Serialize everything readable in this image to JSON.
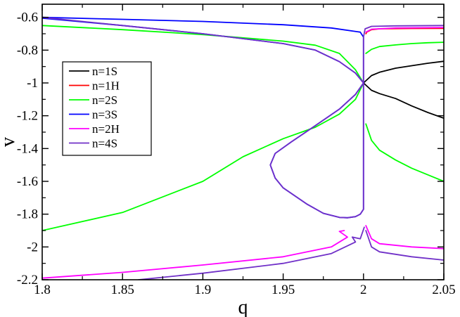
{
  "chart_data": {
    "type": "line",
    "title": "",
    "xlabel": "q",
    "ylabel": "v",
    "xlim": [
      1.8,
      2.05
    ],
    "ylim": [
      -2.2,
      -0.52
    ],
    "xticks": [
      1.8,
      1.85,
      1.9,
      1.95,
      2.0,
      2.05
    ],
    "xtick_labels": [
      "1.8",
      "1.85",
      "1.9",
      "1.95",
      "2",
      "2.05"
    ],
    "yticks": [
      -2.2,
      -2.0,
      -1.8,
      -1.6,
      -1.4,
      -1.2,
      -1.0,
      -0.8,
      -0.6
    ],
    "ytick_labels": [
      "-2.2",
      "-2",
      "-1.8",
      "-1.6",
      "-1.4",
      "-1.2",
      "-1",
      "-0.8",
      "-0.6"
    ],
    "grid": false,
    "legend": {
      "placement": "upper-left"
    },
    "series": [
      {
        "name": "n=1S",
        "color": "#000000",
        "segments": [
          [
            [
              2.0,
              -1.0
            ],
            [
              2.005,
              -0.955
            ],
            [
              2.01,
              -0.935
            ],
            [
              2.02,
              -0.91
            ],
            [
              2.03,
              -0.895
            ],
            [
              2.04,
              -0.88
            ],
            [
              2.05,
              -0.868
            ]
          ],
          [
            [
              2.0,
              -1.0
            ],
            [
              2.005,
              -1.045
            ],
            [
              2.01,
              -1.065
            ],
            [
              2.02,
              -1.095
            ],
            [
              2.03,
              -1.14
            ],
            [
              2.04,
              -1.18
            ],
            [
              2.05,
              -1.215
            ]
          ]
        ]
      },
      {
        "name": "n=1H",
        "color": "#ff0000",
        "segments": [
          [
            [
              2.0015,
              -0.7
            ],
            [
              2.002,
              -0.69
            ],
            [
              2.005,
              -0.675
            ],
            [
              2.01,
              -0.67
            ],
            [
              2.03,
              -0.668
            ],
            [
              2.05,
              -0.667
            ]
          ]
        ]
      },
      {
        "name": "n=2S",
        "color": "#00ff00",
        "segments": [
          [
            [
              1.8,
              -0.65
            ],
            [
              1.85,
              -0.675
            ],
            [
              1.9,
              -0.705
            ],
            [
              1.95,
              -0.745
            ],
            [
              1.97,
              -0.77
            ],
            [
              1.985,
              -0.82
            ],
            [
              1.995,
              -0.92
            ],
            [
              2.0,
              -1.0
            ],
            [
              1.995,
              -1.1
            ],
            [
              1.985,
              -1.19
            ],
            [
              1.97,
              -1.27
            ],
            [
              1.95,
              -1.34
            ],
            [
              1.925,
              -1.45
            ],
            [
              1.9,
              -1.6
            ],
            [
              1.85,
              -1.79
            ],
            [
              1.8,
              -1.9
            ]
          ],
          [
            [
              2.0015,
              -0.82
            ],
            [
              2.005,
              -0.795
            ],
            [
              2.01,
              -0.778
            ],
            [
              2.02,
              -0.768
            ],
            [
              2.03,
              -0.76
            ],
            [
              2.04,
              -0.755
            ],
            [
              2.05,
              -0.752
            ]
          ],
          [
            [
              2.0015,
              -1.25
            ],
            [
              2.005,
              -1.35
            ],
            [
              2.01,
              -1.41
            ],
            [
              2.02,
              -1.47
            ],
            [
              2.03,
              -1.52
            ],
            [
              2.04,
              -1.56
            ],
            [
              2.05,
              -1.6
            ]
          ]
        ]
      },
      {
        "name": "n=3S",
        "color": "#0000ff",
        "segments": [
          [
            [
              1.8,
              -0.6
            ],
            [
              1.85,
              -0.612
            ],
            [
              1.9,
              -0.625
            ],
            [
              1.95,
              -0.645
            ],
            [
              1.98,
              -0.665
            ],
            [
              1.998,
              -0.69
            ],
            [
              2.0,
              -0.72
            ],
            [
              2.0,
              -1.0
            ],
            [
              2.0,
              -1.77
            ],
            [
              1.998,
              -1.8
            ],
            [
              1.995,
              -1.815
            ],
            [
              1.99,
              -1.822
            ],
            [
              1.985,
              -1.82
            ],
            [
              1.975,
              -1.795
            ],
            [
              1.965,
              -1.74
            ],
            [
              1.95,
              -1.64
            ],
            [
              1.945,
              -1.58
            ],
            [
              1.942,
              -1.5
            ],
            [
              1.945,
              -1.43
            ],
            [
              1.955,
              -1.36
            ],
            [
              1.97,
              -1.26
            ],
            [
              1.985,
              -1.16
            ],
            [
              1.995,
              -1.07
            ],
            [
              2.0,
              -1.0
            ],
            [
              1.995,
              -0.94
            ],
            [
              1.985,
              -0.87
            ],
            [
              1.97,
              -0.8
            ],
            [
              1.95,
              -0.76
            ],
            [
              1.9,
              -0.7
            ],
            [
              1.85,
              -0.65
            ],
            [
              1.8,
              -0.605
            ]
          ]
        ]
      },
      {
        "name": "n=2H",
        "color": "#ff00ff",
        "segments": [
          [
            [
              1.8,
              -2.19
            ],
            [
              1.85,
              -2.155
            ],
            [
              1.9,
              -2.11
            ],
            [
              1.95,
              -2.06
            ],
            [
              1.98,
              -2.0
            ],
            [
              1.99,
              -1.94
            ],
            [
              1.985,
              -1.905
            ],
            [
              1.988,
              -1.9
            ]
          ],
          [
            [
              2.0015,
              -1.87
            ],
            [
              2.005,
              -1.95
            ],
            [
              2.01,
              -1.98
            ],
            [
              2.03,
              -2.0
            ],
            [
              2.05,
              -2.01
            ]
          ],
          [
            [
              2.0015,
              -0.69
            ],
            [
              2.005,
              -0.672
            ],
            [
              2.02,
              -0.665
            ],
            [
              2.05,
              -0.662
            ]
          ]
        ]
      },
      {
        "name": "n=4S",
        "color": "#7030c8",
        "segments": [
          [
            [
              1.8,
              -0.6
            ],
            [
              1.85,
              -0.65
            ],
            [
              1.9,
              -0.7
            ],
            [
              1.95,
              -0.76
            ],
            [
              1.97,
              -0.8
            ],
            [
              1.985,
              -0.87
            ],
            [
              1.995,
              -0.94
            ],
            [
              2.0,
              -1.0
            ],
            [
              1.995,
              -1.07
            ],
            [
              1.985,
              -1.16
            ],
            [
              1.97,
              -1.26
            ],
            [
              1.955,
              -1.36
            ],
            [
              1.945,
              -1.43
            ],
            [
              1.942,
              -1.5
            ],
            [
              1.945,
              -1.58
            ],
            [
              1.95,
              -1.64
            ],
            [
              1.965,
              -1.74
            ],
            [
              1.975,
              -1.795
            ],
            [
              1.985,
              -1.82
            ],
            [
              1.99,
              -1.822
            ],
            [
              1.995,
              -1.815
            ],
            [
              1.998,
              -1.8
            ],
            [
              2.0,
              -1.77
            ],
            [
              2.0,
              -1.0
            ],
            [
              2.0,
              -0.72
            ],
            [
              2.001,
              -0.67
            ],
            [
              2.005,
              -0.655
            ],
            [
              2.02,
              -0.652
            ],
            [
              2.05,
              -0.65
            ]
          ],
          [
            [
              1.86,
              -2.2
            ],
            [
              1.9,
              -2.16
            ],
            [
              1.95,
              -2.1
            ],
            [
              1.98,
              -2.04
            ],
            [
              1.995,
              -1.97
            ],
            [
              1.993,
              -1.94
            ],
            [
              1.998,
              -1.95
            ],
            [
              2.0005,
              -1.88
            ]
          ],
          [
            [
              2.0015,
              -1.9
            ],
            [
              2.005,
              -2.0
            ],
            [
              2.01,
              -2.03
            ],
            [
              2.03,
              -2.06
            ],
            [
              2.05,
              -2.08
            ]
          ]
        ]
      }
    ]
  }
}
